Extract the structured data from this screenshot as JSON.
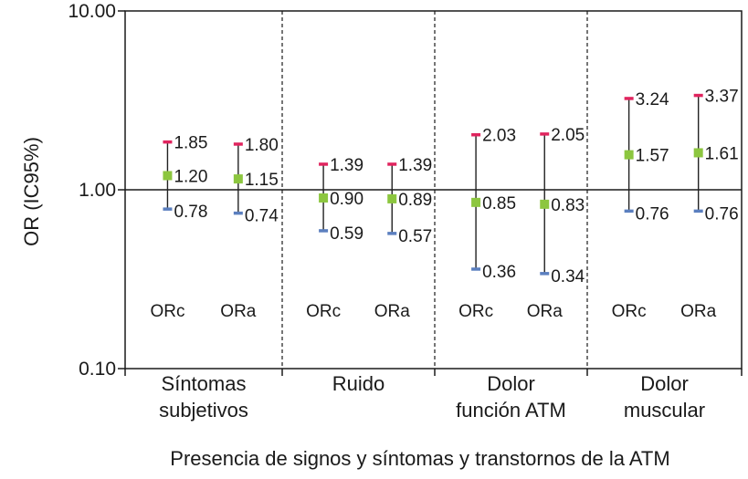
{
  "chart_data": {
    "type": "scatter",
    "ylabel": "OR (IC95%)",
    "xlabel": "Presencia de signos y síntomas y transtornos de la ATM",
    "yscale": "log",
    "ylim": [
      0.1,
      10
    ],
    "yticks": [
      "0.10",
      "1.00",
      "10.00"
    ],
    "reference_line": 1,
    "colors": {
      "upper": "#e0245e",
      "point": "#8cc63f",
      "lower": "#5b7fbf",
      "line": "#222222"
    },
    "groups": [
      {
        "label_lines": [
          "Síntomas",
          "subjetivos"
        ],
        "items": [
          {
            "series": "ORc",
            "lower": 0.78,
            "or": 1.2,
            "upper": 1.85,
            "lower_label": "0.78",
            "or_label": "1.20",
            "upper_label": "1.85"
          },
          {
            "series": "ORa",
            "lower": 0.74,
            "or": 1.15,
            "upper": 1.8,
            "lower_label": "0.74",
            "or_label": "1.15",
            "upper_label": "1.80"
          }
        ]
      },
      {
        "label_lines": [
          "Ruido"
        ],
        "items": [
          {
            "series": "ORc",
            "lower": 0.59,
            "or": 0.9,
            "upper": 1.39,
            "lower_label": "0.59",
            "or_label": "0.90",
            "upper_label": "1.39"
          },
          {
            "series": "ORa",
            "lower": 0.57,
            "or": 0.89,
            "upper": 1.39,
            "lower_label": "0.57",
            "or_label": "0.89",
            "upper_label": "1.39"
          }
        ]
      },
      {
        "label_lines": [
          "Dolor",
          "función ATM"
        ],
        "items": [
          {
            "series": "ORc",
            "lower": 0.36,
            "or": 0.85,
            "upper": 2.03,
            "lower_label": "0.36",
            "or_label": "0.85",
            "upper_label": "2.03"
          },
          {
            "series": "ORa",
            "lower": 0.34,
            "or": 0.83,
            "upper": 2.05,
            "lower_label": "0.34",
            "or_label": "0.83",
            "upper_label": "2.05"
          }
        ]
      },
      {
        "label_lines": [
          "Dolor",
          "muscular"
        ],
        "items": [
          {
            "series": "ORc",
            "lower": 0.76,
            "or": 1.57,
            "upper": 3.24,
            "lower_label": "0.76",
            "or_label": "1.57",
            "upper_label": "3.24"
          },
          {
            "series": "ORa",
            "lower": 0.76,
            "or": 1.61,
            "upper": 3.37,
            "lower_label": "0.76",
            "or_label": "1.61",
            "upper_label": "3.37"
          }
        ]
      }
    ]
  }
}
